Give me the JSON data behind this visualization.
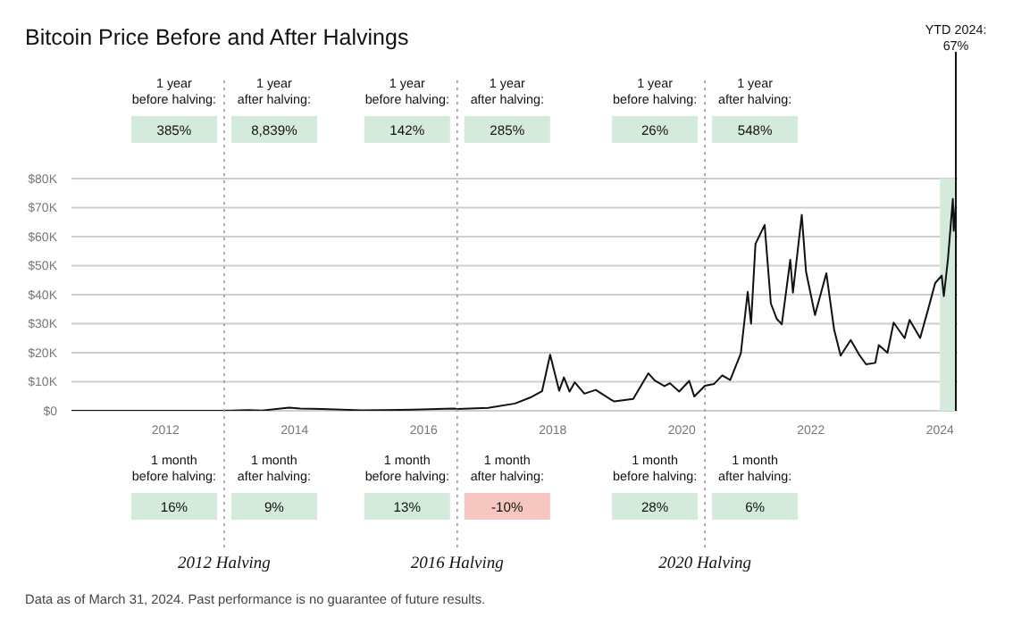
{
  "chart_data": {
    "type": "line",
    "title": "Bitcoin Price Before and After Halvings",
    "x": [
      "2010-07-18",
      "2011-06-08",
      "2011-12-01",
      "2012-06-01",
      "2012-11-28",
      "2013-04-10",
      "2013-07-01",
      "2013-11-30",
      "2014-02-01",
      "2014-06-01",
      "2015-01-14",
      "2015-06-01",
      "2015-11-04",
      "2016-06-18",
      "2016-07-09",
      "2017-01-01",
      "2017-06-01",
      "2017-09-01",
      "2017-11-01",
      "2017-12-17",
      "2018-02-06",
      "2018-03-05",
      "2018-04-06",
      "2018-05-05",
      "2018-06-29",
      "2018-09-01",
      "2018-11-25",
      "2018-12-15",
      "2019-04-01",
      "2019-06-26",
      "2019-08-01",
      "2019-09-25",
      "2019-10-26",
      "2019-12-17",
      "2020-02-12",
      "2020-03-12",
      "2020-05-11",
      "2020-07-01",
      "2020-08-17",
      "2020-10-01",
      "2020-11-30",
      "2021-01-08",
      "2021-01-27",
      "2021-02-21",
      "2021-04-14",
      "2021-05-19",
      "2021-06-22",
      "2021-07-20",
      "2021-09-06",
      "2021-09-21",
      "2021-11-10",
      "2021-12-04",
      "2022-01-24",
      "2022-03-29",
      "2022-05-12",
      "2022-06-18",
      "2022-08-14",
      "2022-10-01",
      "2022-11-09",
      "2022-12-31",
      "2023-01-20",
      "2023-03-10",
      "2023-04-14",
      "2023-06-15",
      "2023-07-13",
      "2023-09-11",
      "2023-10-24",
      "2023-12-05",
      "2024-01-11",
      "2024-01-23",
      "2024-02-15",
      "2024-03-14",
      "2024-03-19",
      "2024-03-31"
    ],
    "series": [
      {
        "color": "#111111",
        "values": [
          0,
          30,
          3,
          6,
          12,
          200,
          90,
          1100,
          800,
          650,
          180,
          230,
          400,
          750,
          650,
          1000,
          2500,
          4700,
          6700,
          19300,
          6900,
          11500,
          6600,
          9800,
          5900,
          7200,
          3900,
          3200,
          4100,
          12900,
          10400,
          8500,
          9500,
          6600,
          10300,
          4900,
          8600,
          9200,
          12200,
          10600,
          19700,
          41000,
          30000,
          57500,
          64000,
          37000,
          31600,
          29800,
          52000,
          40700,
          67500,
          48000,
          33000,
          47400,
          28000,
          19000,
          24400,
          19300,
          16000,
          16500,
          22600,
          20000,
          30400,
          25000,
          31300,
          25100,
          34500,
          44000,
          46600,
          39500,
          52000,
          73000,
          62000,
          71300
        ]
      }
    ],
    "xlim": [
      "2010-07-18",
      "2024-04-10"
    ],
    "xticks": [
      "2012",
      "2014",
      "2016",
      "2018",
      "2020",
      "2022",
      "2024"
    ],
    "ylim": [
      0,
      80000
    ],
    "yticks": [
      {
        "value": 0,
        "label": "$0"
      },
      {
        "value": 10000,
        "label": "$10K"
      },
      {
        "value": 20000,
        "label": "$20K"
      },
      {
        "value": 30000,
        "label": "$30K"
      },
      {
        "value": 40000,
        "label": "$40K"
      },
      {
        "value": 50000,
        "label": "$50K"
      },
      {
        "value": 60000,
        "label": "$60K"
      },
      {
        "value": 70000,
        "label": "$70K"
      },
      {
        "value": 80000,
        "label": "$80K"
      }
    ],
    "grid": "y",
    "legend": false,
    "line_style": "solid",
    "marker": "none",
    "ref_lines": [
      {
        "axis": "x",
        "value": "2012-11-28",
        "label": "2012 Halving",
        "line_style": "dotted",
        "color": "#999999"
      },
      {
        "axis": "x",
        "value": "2016-07-09",
        "label": "2016 Halving",
        "line_style": "dotted",
        "color": "#999999"
      },
      {
        "axis": "x",
        "value": "2020-05-11",
        "label": "2020 Halving",
        "line_style": "dotted",
        "color": "#999999"
      },
      {
        "axis": "x",
        "value": "2024-03-31",
        "label": "YTD 2024: 67%",
        "line_style": "solid",
        "color": "#111111"
      }
    ],
    "bands": [
      {
        "axis": "x",
        "from": "2024-01-01",
        "to": "2024-03-31",
        "color": "#d4eadb"
      }
    ],
    "annotations": [
      "1 year before halving:",
      "385%",
      "1 year after halving:",
      "8,839%",
      "1 month before halving:",
      "16%",
      "1 month after halving:",
      "9%",
      "1 year before halving:",
      "142%",
      "1 year after halving:",
      "285%",
      "1 month before halving:",
      "13%",
      "1 month after halving:",
      "-10%",
      "1 year before halving:",
      "26%",
      "1 year after halving:",
      "548%",
      "1 month before halving:",
      "28%",
      "1 month after halving:",
      "6%",
      "Data as of March 31, 2024. Past performance is no guarantee of future results."
    ]
  }
}
